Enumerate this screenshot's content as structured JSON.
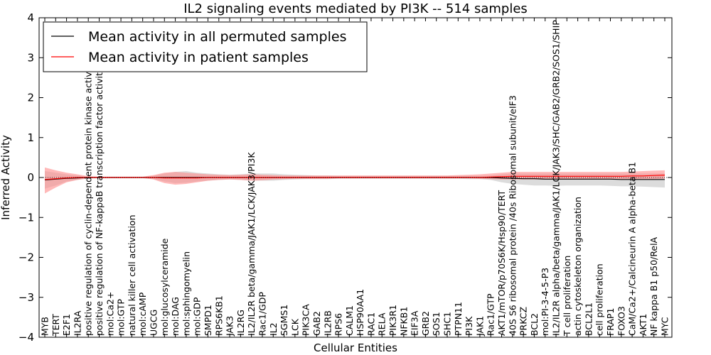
{
  "chart_data": {
    "type": "line",
    "title": "IL2 signaling events mediated by PI3K -- 514 samples",
    "xlabel": "Cellular Entities",
    "ylabel": "Inferred Activity",
    "ylim": [
      -4,
      4
    ],
    "yticks": [
      -4,
      -3,
      -2,
      -1,
      0,
      1,
      2,
      3,
      4
    ],
    "grid": false,
    "legend_position": "top-left",
    "colors": {
      "permuted": "#000000",
      "patient": "#ff0000",
      "patient_band": "#ff8a8a",
      "permuted_band": "#c0c0c0"
    },
    "categories": [
      "MYB",
      "TERT",
      "E2F1",
      "IL2RA",
      "positive regulation of cyclin-dependent protein kinase activity",
      "positive regulation of NF-kappaB transcription factor activity",
      "mol:Ca2+",
      "mol:GTP",
      "natural killer cell activation",
      "mol:cAMP",
      "UGCG",
      "mol:glucosylceramide",
      "mol:DAG",
      "mol:sphingomyelin",
      "mol:GDP",
      "SMPD1",
      "RPS6KB1",
      "JAK3",
      "IL2RG",
      "IL2/IL2R beta/gamma/JAK1/LCK/JAK3/PI3K",
      "Rac1/GDP",
      "IL2",
      "SGMS1",
      "LCK",
      "PIK3CA",
      "GAB2",
      "IL2RB",
      "RPS6",
      "CALM1",
      "HSP90AA1",
      "RAC1",
      "RELA",
      "PIK3R1",
      "NFKB1",
      "EIF3A",
      "GRB2",
      "SOS1",
      "SHC1",
      "PTPN11",
      "PI3K",
      "JAK1",
      "Rac1/GTP",
      "AKT1/mTOR/p70S6K/Hsp90/TERT",
      "40S S6 ribosomal protein /40s Ribosomal subunit/eIF3",
      "PRKCZ",
      "BCL2",
      "mol:PI-3-4-5-P3",
      "IL2/IL2R alpha/beta/gamma/JAK1/LCK/JAK3/SHC/GAB2/GRB2/SOS1/SHIP",
      "T cell proliferation",
      "actin cytoskeleton organization",
      "BCL2L1",
      "cell proliferation",
      "FRAP1",
      "FOXO3",
      "CaM/Ca2+/Calcineurin A alpha-beta B1",
      "AKT1",
      "NF kappa B1 p50/RelA",
      "MYC"
    ],
    "series": [
      {
        "name": "Mean activity in all permuted samples",
        "values": [
          -0.06,
          -0.04,
          -0.02,
          -0.01,
          0,
          0,
          0,
          0,
          0,
          0,
          0,
          0,
          0,
          0,
          0,
          0,
          0,
          0,
          0,
          0,
          0,
          0,
          0,
          0,
          0,
          0,
          0,
          0,
          0,
          0,
          0,
          0,
          0,
          0,
          0,
          0,
          0,
          0,
          0,
          0,
          0,
          0,
          -0.01,
          -0.02,
          -0.03,
          -0.03,
          -0.04,
          -0.04,
          -0.04,
          -0.04,
          -0.04,
          -0.04,
          -0.04,
          -0.05,
          -0.05,
          -0.05,
          -0.05,
          -0.05
        ],
        "lower": [
          -0.28,
          -0.2,
          -0.1,
          -0.06,
          -0.02,
          -0.02,
          -0.02,
          -0.02,
          -0.02,
          -0.02,
          -0.04,
          -0.1,
          -0.14,
          -0.13,
          -0.1,
          -0.08,
          -0.06,
          -0.05,
          -0.06,
          -0.08,
          -0.08,
          -0.08,
          -0.06,
          -0.05,
          -0.04,
          -0.04,
          -0.04,
          -0.03,
          -0.03,
          -0.03,
          -0.03,
          -0.03,
          -0.03,
          -0.03,
          -0.03,
          -0.03,
          -0.03,
          -0.03,
          -0.03,
          -0.04,
          -0.04,
          -0.06,
          -0.12,
          -0.16,
          -0.18,
          -0.2,
          -0.2,
          -0.21,
          -0.2,
          -0.2,
          -0.2,
          -0.2,
          -0.21,
          -0.22,
          -0.22,
          -0.23,
          -0.24,
          -0.25
        ],
        "upper": [
          0.16,
          0.12,
          0.08,
          0.05,
          0.02,
          0.02,
          0.02,
          0.02,
          0.02,
          0.02,
          0.04,
          0.1,
          0.14,
          0.16,
          0.12,
          0.1,
          0.08,
          0.07,
          0.08,
          0.1,
          0.1,
          0.1,
          0.08,
          0.07,
          0.06,
          0.05,
          0.05,
          0.04,
          0.04,
          0.04,
          0.04,
          0.04,
          0.04,
          0.04,
          0.04,
          0.04,
          0.04,
          0.04,
          0.04,
          0.04,
          0.04,
          0.05,
          0.08,
          0.1,
          0.1,
          0.1,
          0.1,
          0.1,
          0.1,
          0.1,
          0.1,
          0.1,
          0.1,
          0.1,
          0.1,
          0.1,
          0.1,
          0.1
        ]
      },
      {
        "name": "Mean activity in patient samples",
        "values": [
          -0.05,
          -0.03,
          -0.01,
          0,
          0,
          0,
          0,
          0,
          0,
          0,
          0,
          -0.01,
          -0.01,
          -0.01,
          -0.01,
          0,
          0,
          0,
          0,
          0,
          0,
          0,
          0,
          0,
          0,
          0,
          0,
          0,
          0,
          0,
          0,
          0,
          0,
          0,
          0,
          0,
          0,
          0,
          0,
          0,
          0,
          0.01,
          0.02,
          0.03,
          0.03,
          0.03,
          0.03,
          0.03,
          0.03,
          0.03,
          0.03,
          0.03,
          0.03,
          0.03,
          0.04,
          0.04,
          0.05,
          0.06
        ],
        "lower": [
          -0.4,
          -0.25,
          -0.12,
          -0.06,
          -0.02,
          -0.01,
          -0.01,
          -0.01,
          -0.01,
          -0.01,
          -0.05,
          -0.14,
          -0.18,
          -0.16,
          -0.12,
          -0.08,
          -0.06,
          -0.05,
          -0.06,
          -0.08,
          -0.07,
          -0.05,
          -0.04,
          -0.03,
          -0.03,
          -0.03,
          -0.03,
          -0.02,
          -0.02,
          -0.02,
          -0.02,
          -0.02,
          -0.02,
          -0.02,
          -0.02,
          -0.02,
          -0.02,
          -0.02,
          -0.02,
          -0.02,
          -0.03,
          -0.04,
          -0.05,
          -0.05,
          -0.05,
          -0.05,
          -0.05,
          -0.05,
          -0.05,
          -0.05,
          -0.05,
          -0.05,
          -0.05,
          -0.05,
          -0.05,
          -0.04,
          -0.04,
          -0.03
        ],
        "upper": [
          0.25,
          0.18,
          0.12,
          0.08,
          0.03,
          0.02,
          0.02,
          0.02,
          0.02,
          0.02,
          0.06,
          0.12,
          0.14,
          0.12,
          0.1,
          0.08,
          0.07,
          0.06,
          0.07,
          0.08,
          0.07,
          0.06,
          0.05,
          0.05,
          0.05,
          0.05,
          0.05,
          0.05,
          0.05,
          0.05,
          0.05,
          0.05,
          0.05,
          0.05,
          0.05,
          0.05,
          0.05,
          0.05,
          0.06,
          0.07,
          0.08,
          0.1,
          0.12,
          0.14,
          0.14,
          0.14,
          0.14,
          0.14,
          0.14,
          0.14,
          0.14,
          0.14,
          0.14,
          0.14,
          0.15,
          0.16,
          0.17,
          0.18
        ]
      }
    ]
  }
}
